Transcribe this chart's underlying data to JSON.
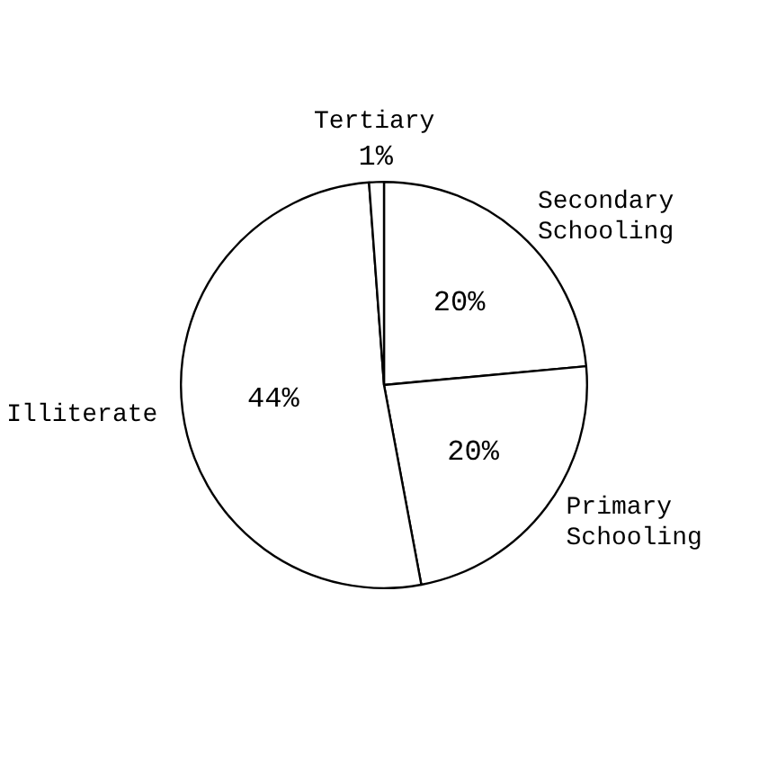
{
  "chart_data": {
    "type": "pie",
    "categories": [
      "Secondary Schooling",
      "Primary Schooling",
      "Illiterate",
      "Tertiary"
    ],
    "values": [
      20,
      20,
      44,
      1
    ],
    "value_labels": [
      "20%",
      "20%",
      "44%",
      "1%"
    ],
    "colors": [
      "#ffffff",
      "#ffffff",
      "#ffffff",
      "#ffffff"
    ],
    "legend": false
  }
}
